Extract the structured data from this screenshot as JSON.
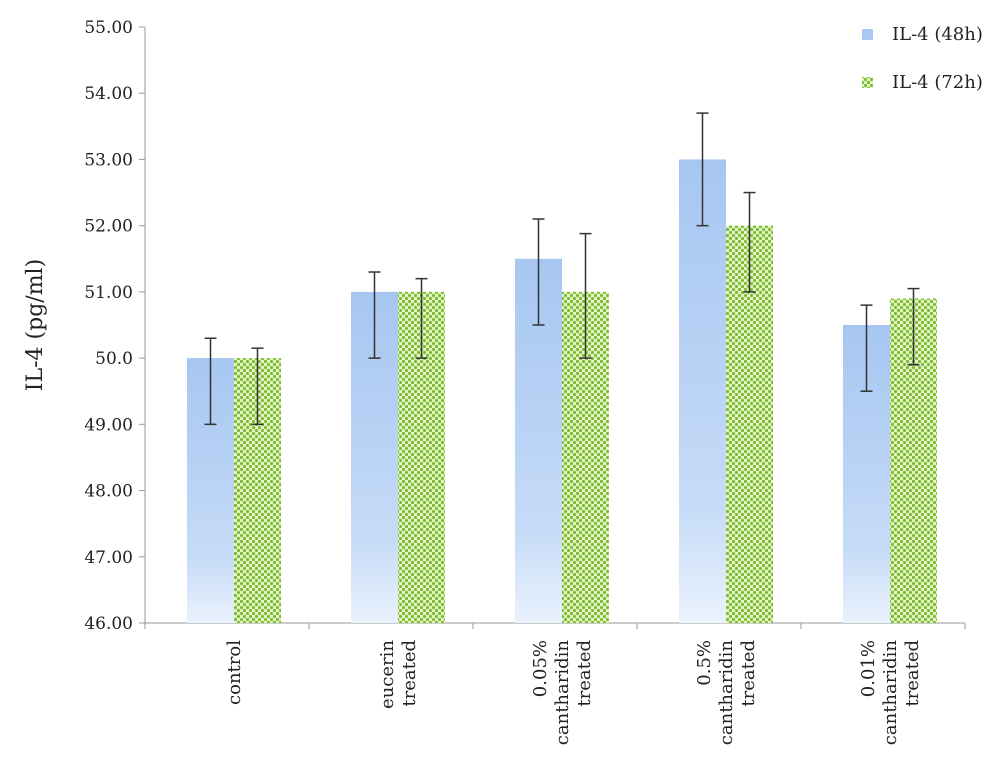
{
  "chart_data": {
    "type": "bar",
    "title": "",
    "xlabel": "",
    "ylabel": "IL-4 (pg/ml)",
    "ylim": [
      46,
      55
    ],
    "yticks": [
      "46.00",
      "47.00",
      "48.00",
      "49.00",
      "50.0",
      "51.00",
      "52.00",
      "53.00",
      "54.00",
      "55.00"
    ],
    "ytick_values": [
      46,
      47,
      48,
      49,
      50,
      51,
      52,
      53,
      54,
      55
    ],
    "grid": false,
    "legend_position": "top-right",
    "categories": [
      [
        "control"
      ],
      [
        "eucerin",
        "treated"
      ],
      [
        "0.05%",
        "cantharidin",
        "treated"
      ],
      [
        "0.5%",
        "cantharidin",
        "treated"
      ],
      [
        "0.01%",
        "cantharidin",
        "treated"
      ]
    ],
    "series": [
      {
        "name": "IL-4 (48h)",
        "color": "#a9c8f2",
        "values": [
          50.0,
          51.0,
          51.5,
          53.0,
          50.5
        ],
        "err_low": [
          49.0,
          50.0,
          50.5,
          52.0,
          49.5
        ],
        "err_high": [
          50.3,
          51.3,
          52.1,
          53.7,
          50.8
        ]
      },
      {
        "name": "IL-4 (72h)",
        "color": "#7fb83a",
        "values": [
          50.0,
          51.0,
          51.0,
          52.0,
          50.9
        ],
        "err_low": [
          49.0,
          50.0,
          50.0,
          51.0,
          49.9
        ],
        "err_high": [
          50.15,
          51.2,
          51.88,
          52.5,
          51.05
        ]
      }
    ]
  }
}
